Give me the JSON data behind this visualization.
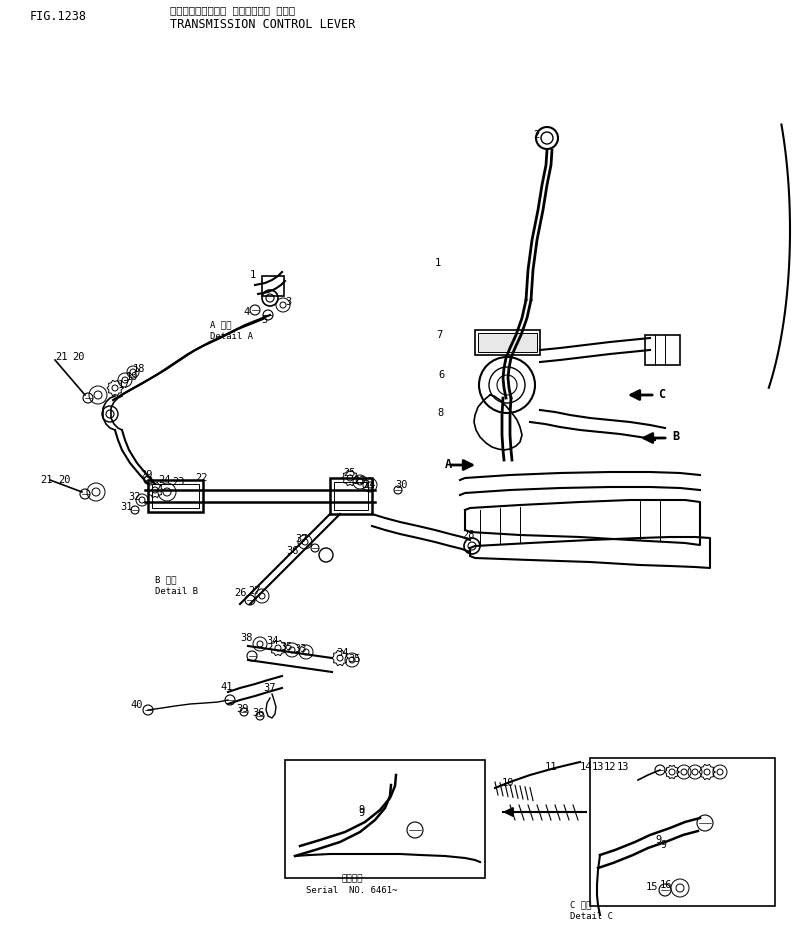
{
  "title_jp": "トランスミッション コントロール レバー",
  "title_en": "TRANSMISSION CONTROL LEVER",
  "fig_label": "FIG.1238",
  "serial_jp": "通番号機",
  "serial_en": "Serial  NO. 6461~",
  "detail_a_jp": "A 詳細",
  "detail_a_en": "Detail A",
  "detail_b_jp": "B 詳細",
  "detail_b_en": "Detail B",
  "detail_c_jp": "C 詳細",
  "detail_c_en": "Detail C",
  "bg_color": "#ffffff",
  "line_color": "#000000",
  "figsize": [
    7.95,
    9.46
  ],
  "dpi": 100
}
